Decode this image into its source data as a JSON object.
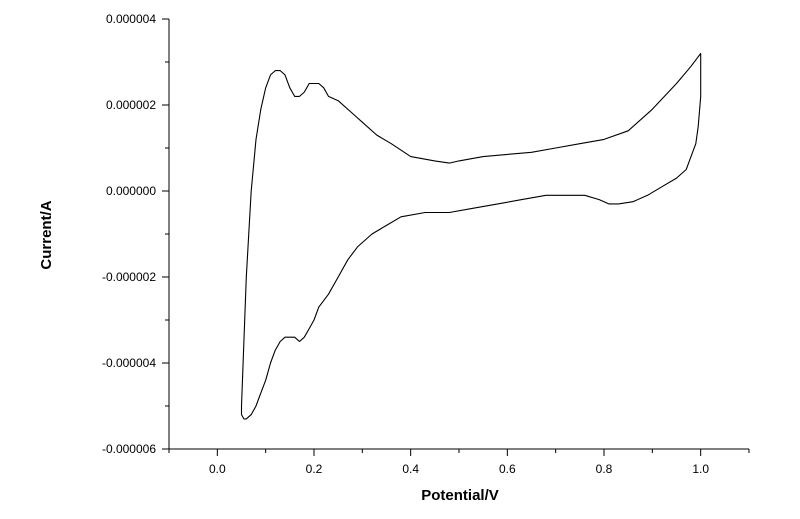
{
  "chart_data": {
    "type": "line",
    "title": "",
    "xlabel": "Potential/V",
    "ylabel": "Current/A",
    "xlim": [
      -0.1,
      1.1
    ],
    "ylim": [
      -6e-06,
      4e-06
    ],
    "x_ticks": [
      {
        "value": 0.0,
        "label": "0.0"
      },
      {
        "value": 0.2,
        "label": "0.2"
      },
      {
        "value": 0.4,
        "label": "0.4"
      },
      {
        "value": 0.6,
        "label": "0.6"
      },
      {
        "value": 0.8,
        "label": "0.8"
      },
      {
        "value": 1.0,
        "label": "1.0"
      }
    ],
    "x_minor_ticks": [
      -0.1,
      0.1,
      0.3,
      0.5,
      0.7,
      0.9,
      1.1
    ],
    "y_ticks": [
      {
        "value": 4e-06,
        "label": "0.000004"
      },
      {
        "value": 2e-06,
        "label": "0.000002"
      },
      {
        "value": 0.0,
        "label": "0.000000"
      },
      {
        "value": -2e-06,
        "label": "-0.000002"
      },
      {
        "value": -4e-06,
        "label": "-0.000004"
      },
      {
        "value": -6e-06,
        "label": "-0.000006"
      }
    ],
    "y_minor_ticks": [
      3e-06,
      1e-06,
      -1e-06,
      -3e-06,
      -5e-06
    ],
    "grid": false,
    "legend": "none",
    "line_color": "#000000",
    "series": [
      {
        "x": [
          0.05,
          0.055,
          0.06,
          0.07,
          0.08,
          0.09,
          0.1,
          0.11,
          0.12,
          0.13,
          0.14,
          0.15,
          0.16,
          0.17,
          0.18,
          0.19,
          0.2,
          0.21,
          0.22,
          0.23,
          0.25,
          0.28,
          0.3,
          0.33,
          0.36,
          0.4,
          0.45,
          0.48,
          0.5,
          0.55,
          0.6,
          0.65,
          0.7,
          0.75,
          0.8,
          0.85,
          0.9,
          0.95,
          0.98,
          1.0,
          1.0,
          0.995,
          0.99,
          0.98,
          0.97,
          0.95,
          0.92,
          0.89,
          0.86,
          0.83,
          0.81,
          0.79,
          0.76,
          0.72,
          0.68,
          0.63,
          0.58,
          0.53,
          0.48,
          0.43,
          0.38,
          0.35,
          0.32,
          0.29,
          0.27,
          0.25,
          0.23,
          0.21,
          0.2,
          0.19,
          0.18,
          0.17,
          0.16,
          0.155,
          0.15,
          0.14,
          0.13,
          0.12,
          0.11,
          0.1,
          0.09,
          0.08,
          0.07,
          0.06,
          0.055,
          0.05,
          0.05
        ],
        "y": [
          -5e-06,
          -3.5e-06,
          -2e-06,
          0.0,
          1.2e-06,
          1.9e-06,
          2.4e-06,
          2.7e-06,
          2.8e-06,
          2.8e-06,
          2.7e-06,
          2.4e-06,
          2.2e-06,
          2.2e-06,
          2.3e-06,
          2.5e-06,
          2.5e-06,
          2.5e-06,
          2.4e-06,
          2.2e-06,
          2.1e-06,
          1.8e-06,
          1.6e-06,
          1.3e-06,
          1.1e-06,
          8e-07,
          7e-07,
          6.5e-07,
          7e-07,
          8e-07,
          8.5e-07,
          9e-07,
          1e-06,
          1.1e-06,
          1.2e-06,
          1.4e-06,
          1.9e-06,
          2.5e-06,
          2.9e-06,
          3.2e-06,
          2.2e-06,
          1.5e-06,
          1.1e-06,
          8e-07,
          5e-07,
          3e-07,
          1e-07,
          -1e-07,
          -2.5e-07,
          -3e-07,
          -3e-07,
          -2e-07,
          -1e-07,
          -1e-07,
          -1e-07,
          -2e-07,
          -3e-07,
          -4e-07,
          -5e-07,
          -5e-07,
          -6e-07,
          -8e-07,
          -1e-06,
          -1.3e-06,
          -1.6e-06,
          -2e-06,
          -2.4e-06,
          -2.7e-06,
          -3e-06,
          -3.2e-06,
          -3.4e-06,
          -3.5e-06,
          -3.4e-06,
          -3.4e-06,
          -3.4e-06,
          -3.4e-06,
          -3.5e-06,
          -3.7e-06,
          -4e-06,
          -4.4e-06,
          -4.7e-06,
          -5e-06,
          -5.2e-06,
          -5.3e-06,
          -5.3e-06,
          -5.2e-06,
          -5e-06
        ]
      }
    ]
  }
}
